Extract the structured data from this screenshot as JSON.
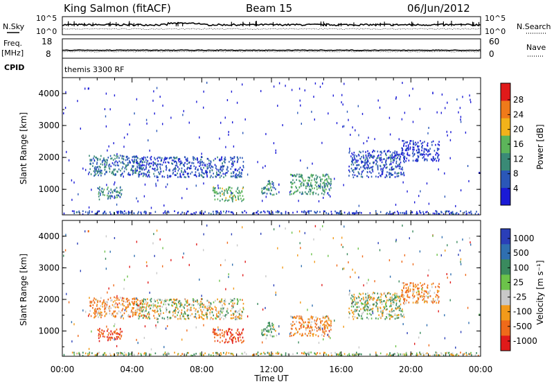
{
  "header": {
    "radar": "King Salmon (fitACF)",
    "beam": "Beam 15",
    "date": "06/Jun/2012"
  },
  "noise_panel": {
    "left_label": "N.Sky",
    "right_label": "N.Search",
    "left_ticks": [
      "10^5",
      "10^0"
    ],
    "right_ticks": [
      "10^5",
      "10^0"
    ]
  },
  "freq_panel": {
    "left_label_1": "Freq.",
    "left_label_2": "[MHz]",
    "right_label": "Nave",
    "left_ticks": [
      "18",
      "8"
    ],
    "right_ticks": [
      "60",
      "0"
    ]
  },
  "cpid_panel": {
    "label": "CPID",
    "program": "themis 3300 RF"
  },
  "power_panel": {
    "ylabel": "Slant Range [km]",
    "yticks": [
      "4000",
      "3000",
      "2000",
      "1000"
    ],
    "colorbar_label": "Power [dB]",
    "colorbar_ticks": [
      "28",
      "24",
      "20",
      "16",
      "12",
      "8",
      "4"
    ],
    "colors": [
      "#1a1ad6",
      "#2a57b8",
      "#3a8a76",
      "#5cb55a",
      "#f2b21a",
      "#ef7a1a",
      "#e01a1a"
    ]
  },
  "velocity_panel": {
    "ylabel": "Slant Range [km]",
    "yticks": [
      "4000",
      "3000",
      "2000",
      "1000"
    ],
    "colorbar_label": "Velocity [m s⁻¹]",
    "colorbar_ticks": [
      "1000",
      "500",
      "100",
      "25",
      "-25",
      "-100",
      "-500",
      "-1000"
    ],
    "colors": [
      "#2a3fb8",
      "#2f6fb0",
      "#3a8a5e",
      "#6cc24a",
      "#c8c8c8",
      "#f29a1a",
      "#ef6a1a",
      "#e01a1a"
    ]
  },
  "x_axis": {
    "label": "Time UT",
    "ticks": [
      "00:00",
      "04:00",
      "08:00",
      "12:00",
      "16:00",
      "20:00",
      "00:00"
    ]
  },
  "chart_data": {
    "type": "heatmap",
    "title": "King Salmon (fitACF) Beam 15 06/Jun/2012",
    "xlabel": "Time UT",
    "ylabel": "Slant Range [km]",
    "xlim_hours": [
      0,
      24
    ],
    "ylim_km": [
      200,
      4500
    ],
    "grid": false,
    "panels": [
      "Power [dB]",
      "Velocity [m s⁻¹]"
    ],
    "power_scale_db": [
      0,
      30
    ],
    "velocity_scale": [
      -1000,
      1000
    ],
    "echo_regions": [
      {
        "t0": 1.5,
        "t1": 4.6,
        "r0": 1450,
        "r1": 2100,
        "power_db": 8,
        "velocity": -100
      },
      {
        "t0": 2.0,
        "t1": 3.4,
        "r0": 700,
        "r1": 1100,
        "power_db": 10,
        "velocity": -500
      },
      {
        "t0": 4.2,
        "t1": 10.4,
        "r0": 1400,
        "r1": 2050,
        "power_db": 6,
        "velocity": 0
      },
      {
        "t0": 8.6,
        "t1": 10.4,
        "r0": 650,
        "r1": 1100,
        "power_db": 14,
        "velocity": -500
      },
      {
        "t0": 11.4,
        "t1": 12.3,
        "r0": 850,
        "r1": 1300,
        "power_db": 10,
        "velocity": 100
      },
      {
        "t0": 13.0,
        "t1": 15.4,
        "r0": 850,
        "r1": 1500,
        "power_db": 12,
        "velocity": -100
      },
      {
        "t0": 16.4,
        "t1": 19.6,
        "r0": 1400,
        "r1": 2250,
        "power_db": 6,
        "velocity": 25
      },
      {
        "t0": 19.4,
        "t1": 21.6,
        "r0": 1900,
        "r1": 2550,
        "power_db": 4,
        "velocity": -100
      },
      {
        "t0": 0.0,
        "t1": 24.0,
        "r0": 200,
        "r1": 350,
        "power_db": 5,
        "velocity": 25
      }
    ],
    "noise_series": {
      "N.Sky": "~10^3",
      "N.Search": "~10^2"
    },
    "frequency_mhz": 11,
    "nave": 20
  }
}
